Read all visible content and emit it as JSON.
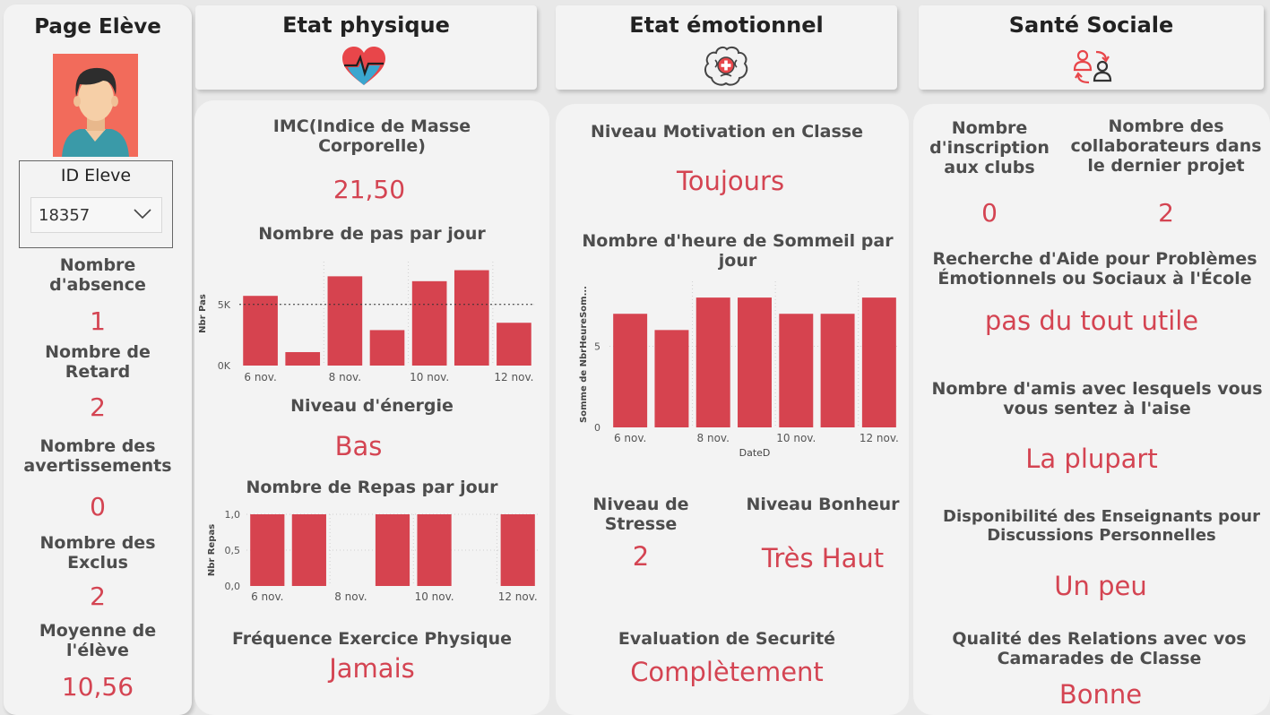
{
  "accent_color": "#d44452",
  "sidebar": {
    "title": "Page Elève",
    "avatar_icon": "student-avatar-icon",
    "student_id": {
      "label": "ID Eleve",
      "value": "18357"
    },
    "absence": {
      "label": "Nombre d'absence",
      "value": "1"
    },
    "retard": {
      "label": "Nombre de Retard",
      "value": "2"
    },
    "avertissements": {
      "label": "Nombre des avertissements",
      "value": "0"
    },
    "exclus": {
      "label": "Nombre des Exclus",
      "value": "2"
    },
    "moyenne": {
      "label": "Moyenne de l'élève",
      "value": "10,56"
    }
  },
  "headers": {
    "physique": {
      "title": "Etat physique",
      "icon": "heart-pulse-icon"
    },
    "emotionnel": {
      "title": "Etat émotionnel",
      "icon": "brain-icon"
    },
    "social": {
      "title": "Santé Sociale",
      "icon": "people-exchange-icon"
    }
  },
  "physique": {
    "imc_label": "IMC(Indice de Masse Corporelle)",
    "imc_value": "21,50",
    "steps_title": "Nombre de pas par jour",
    "energie_label": "Niveau d'énergie",
    "energie_value": "Bas",
    "repas_title": "Nombre de Repas par jour",
    "exercice_label": "Fréquence Exercice Physique",
    "exercice_value": "Jamais"
  },
  "emotionnel": {
    "motivation_label": "Niveau Motivation en Classe",
    "motivation_value": "Toujours",
    "sleep_title": "Nombre d'heure de Sommeil par jour",
    "stress_label": "Niveau de Stresse",
    "stress_value": "2",
    "bonheur_label": "Niveau Bonheur",
    "bonheur_value": "Très Haut",
    "securite_label": "Evaluation de Securité",
    "securite_value": "Complètement"
  },
  "social": {
    "clubs_label": "Nombre d'inscription aux clubs",
    "clubs_value": "0",
    "collab_label": "Nombre des collaborateurs dans le dernier projet",
    "collab_value": "2",
    "aide_label": "Recherche d'Aide pour Problèmes Émotionnels ou Sociaux à l'École",
    "aide_value": "pas du tout utile",
    "amis_label": "Nombre d'amis avec lesquels vous vous sentez à l'aise",
    "amis_value": "La plupart",
    "dispo_label": "Disponibilité des Enseignants pour Discussions Personnelles",
    "dispo_value": "Un peu",
    "qualite_label": "Qualité des Relations avec vos Camarades de Classe",
    "qualite_value": "Bonne"
  },
  "chart_data": [
    {
      "type": "bar",
      "categories": [
        "6 nov.",
        "7 nov.",
        "8 nov.",
        "9 nov.",
        "10 nov.",
        "11 nov.",
        "12 nov."
      ],
      "values": [
        5700,
        1100,
        7300,
        2900,
        6900,
        7800,
        3500
      ],
      "xtick_labels": [
        "6 nov.",
        "8 nov.",
        "10 nov.",
        "12 nov."
      ],
      "ytick_labels": [
        "0K",
        "5K"
      ],
      "ylim": [
        0,
        8500
      ],
      "reference_line": 5000,
      "ylabel": "Nbr Pas",
      "xlabel": "",
      "color": "#d6434f"
    },
    {
      "type": "bar",
      "categories": [
        "6 nov.",
        "7 nov.",
        "8 nov.",
        "9 nov.",
        "10 nov.",
        "11 nov.",
        "12 nov."
      ],
      "values": [
        1,
        1,
        0,
        1,
        1,
        0,
        1
      ],
      "xtick_labels": [
        "6 nov.",
        "8 nov.",
        "10 nov.",
        "12 nov."
      ],
      "ytick_labels": [
        "0,0",
        "0,5",
        "1,0"
      ],
      "ylim": [
        0,
        1
      ],
      "ylabel": "Nbr Repas",
      "xlabel": "",
      "color": "#d6434f"
    },
    {
      "type": "bar",
      "categories": [
        "6 nov.",
        "7 nov.",
        "8 nov.",
        "9 nov.",
        "10 nov.",
        "11 nov.",
        "12 nov."
      ],
      "values": [
        7,
        6,
        8,
        8,
        7,
        7,
        8
      ],
      "xtick_labels": [
        "6 nov.",
        "8 nov.",
        "10 nov.",
        "12 nov."
      ],
      "ytick_labels": [
        "0",
        "5"
      ],
      "ylim": [
        0,
        9
      ],
      "ylabel": "Somme de NbrHeureSom...",
      "xlabel": "DateD",
      "color": "#d6434f"
    }
  ]
}
